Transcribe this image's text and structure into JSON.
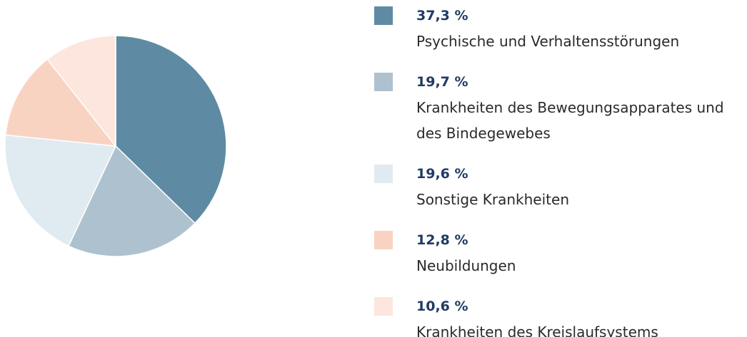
{
  "chart_data": {
    "type": "pie",
    "categories": [
      "Psychische und Verhaltensstörungen",
      "Krankheiten des Bewegungsapparates und des Bindegewebes",
      "Sonstige Krankheiten",
      "Neubildungen",
      "Krankheiten des Kreislaufsystems"
    ],
    "values": [
      37.3,
      19.7,
      19.6,
      12.8,
      10.6
    ],
    "value_labels": [
      "37,3 %",
      "19,7 %",
      "19,6 %",
      "12,8 %",
      "10,6 %"
    ],
    "colors": [
      "#5e8ba3",
      "#adc2ce",
      "#e0eaf1",
      "#f9d3c2",
      "#fce6dd"
    ]
  }
}
